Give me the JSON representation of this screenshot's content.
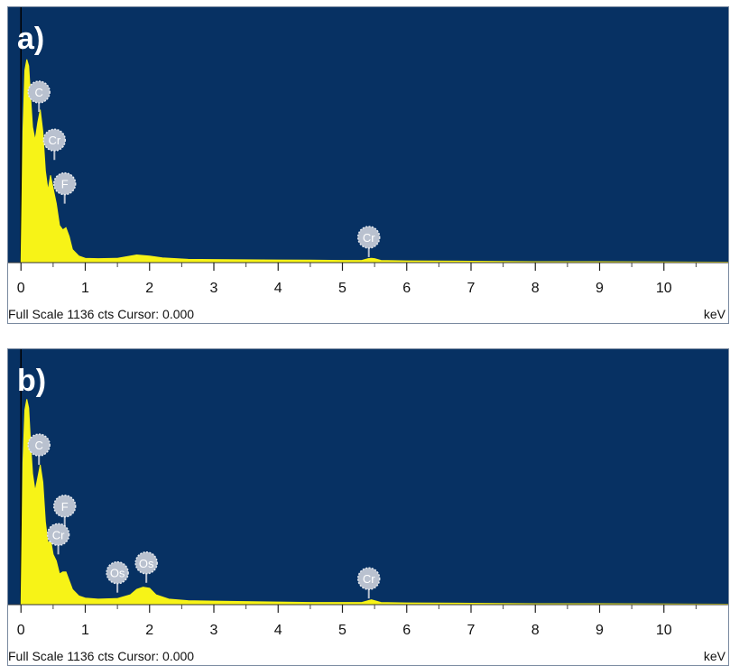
{
  "colors": {
    "plot_background": "#073163",
    "spectrum_fill": "#f7f317",
    "element_marker": "#b9c1cf",
    "axis_text": "#111111"
  },
  "chart_data": [
    {
      "type": "area",
      "panel_label": "a)",
      "xlabel": "keV",
      "xlim": [
        -0.2,
        11.0
      ],
      "ylim": [
        0,
        1136
      ],
      "x_ticks": [
        0,
        1,
        2,
        3,
        4,
        5,
        6,
        7,
        8,
        9,
        10
      ],
      "full_scale_label": "Full Scale 1136 cts",
      "cursor_label": "Cursor: 0.000",
      "spectrum": {
        "x": [
          0.0,
          0.03,
          0.06,
          0.09,
          0.12,
          0.15,
          0.18,
          0.22,
          0.26,
          0.3,
          0.34,
          0.38,
          0.42,
          0.46,
          0.5,
          0.55,
          0.6,
          0.65,
          0.7,
          0.75,
          0.8,
          0.9,
          1.0,
          1.2,
          1.5,
          1.8,
          2.0,
          2.2,
          2.6,
          3.0,
          3.5,
          4.0,
          4.5,
          5.0,
          5.3,
          5.4,
          5.45,
          5.5,
          5.6,
          6.0,
          7.0,
          8.0,
          9.0,
          10.0,
          11.0
        ],
        "y": [
          0,
          600,
          880,
          930,
          900,
          760,
          620,
          560,
          640,
          700,
          600,
          420,
          330,
          400,
          340,
          270,
          170,
          150,
          160,
          120,
          60,
          30,
          20,
          18,
          20,
          35,
          30,
          22,
          15,
          14,
          13,
          12,
          11,
          10,
          10,
          18,
          20,
          18,
          10,
          8,
          6,
          4,
          4,
          3,
          2
        ]
      },
      "element_markers": [
        {
          "label": "C",
          "x": 0.28,
          "y": 690
        },
        {
          "label": "Cr",
          "x": 0.52,
          "y": 470
        },
        {
          "label": "F",
          "x": 0.68,
          "y": 270
        },
        {
          "label": "Cr",
          "x": 5.41,
          "y": 25
        }
      ]
    },
    {
      "type": "area",
      "panel_label": "b)",
      "xlabel": "keV",
      "xlim": [
        -0.2,
        11.0
      ],
      "ylim": [
        0,
        1136
      ],
      "x_ticks": [
        0,
        1,
        2,
        3,
        4,
        5,
        6,
        7,
        8,
        9,
        10
      ],
      "full_scale_label": "Full Scale 1136 cts",
      "cursor_label": "Cursor: 0.000",
      "spectrum": {
        "x": [
          0.0,
          0.03,
          0.06,
          0.09,
          0.12,
          0.15,
          0.18,
          0.22,
          0.26,
          0.3,
          0.34,
          0.38,
          0.42,
          0.46,
          0.5,
          0.55,
          0.6,
          0.65,
          0.7,
          0.75,
          0.8,
          0.9,
          1.0,
          1.2,
          1.5,
          1.7,
          1.8,
          1.9,
          2.0,
          2.1,
          2.3,
          2.6,
          3.0,
          3.5,
          4.0,
          4.5,
          5.0,
          5.3,
          5.4,
          5.45,
          5.5,
          5.6,
          6.0,
          7.0,
          8.0,
          9.0,
          10.0,
          11.0
        ],
        "y": [
          0,
          650,
          890,
          940,
          900,
          740,
          600,
          520,
          580,
          640,
          560,
          380,
          280,
          300,
          230,
          200,
          140,
          150,
          150,
          110,
          70,
          40,
          30,
          25,
          28,
          45,
          70,
          80,
          75,
          45,
          25,
          18,
          16,
          14,
          12,
          10,
          10,
          10,
          18,
          22,
          18,
          10,
          8,
          6,
          4,
          4,
          3,
          2
        ]
      },
      "element_markers": [
        {
          "label": "C",
          "x": 0.28,
          "y": 640
        },
        {
          "label": "F",
          "x": 0.68,
          "y": 360
        },
        {
          "label": "Cr",
          "x": 0.58,
          "y": 230
        },
        {
          "label": "Os",
          "x": 1.5,
          "y": 55
        },
        {
          "label": "Os",
          "x": 1.95,
          "y": 100
        },
        {
          "label": "Cr",
          "x": 5.41,
          "y": 28
        }
      ]
    }
  ]
}
